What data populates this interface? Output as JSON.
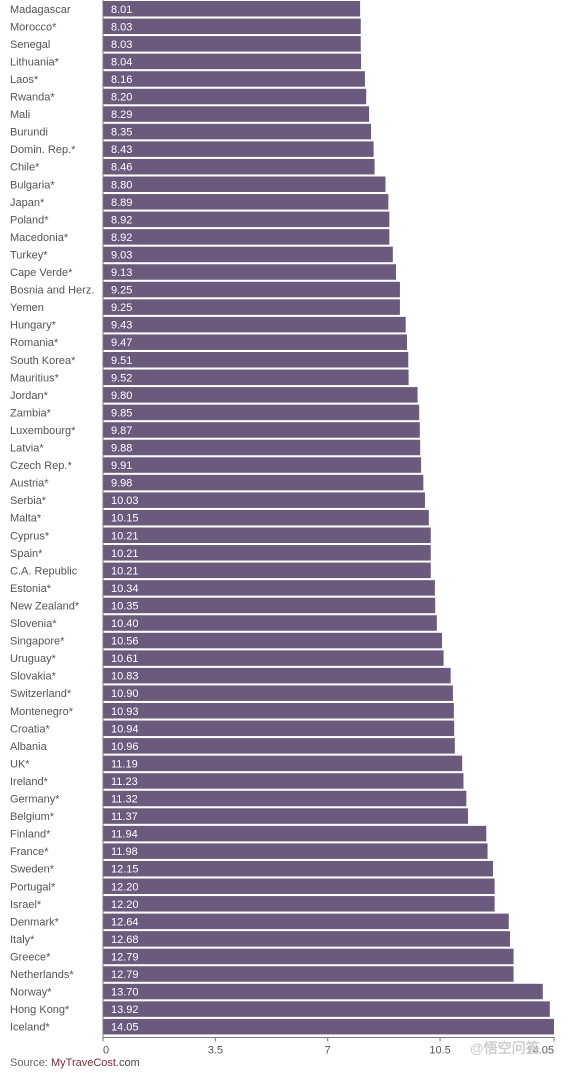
{
  "chart_data": {
    "type": "bar",
    "orientation": "horizontal",
    "categories": [
      "Madagascar",
      "Morocco*",
      "Senegal",
      "Lithuania*",
      "Laos*",
      "Rwanda*",
      "Mali",
      "Burundi",
      "Domin. Rep.*",
      "Chile*",
      "Bulgaria*",
      "Japan*",
      "Poland*",
      "Macedonia*",
      "Turkey*",
      "Cape Verde*",
      "Bosnia and Herz.",
      "Yemen",
      "Hungary*",
      "Romania*",
      "South Korea*",
      "Mauritius*",
      "Jordan*",
      "Zambia*",
      "Luxembourg*",
      "Latvia*",
      "Czech Rep.*",
      "Austria*",
      "Serbia*",
      "Malta*",
      "Cyprus*",
      "Spain*",
      "C.A. Republic",
      "Estonia*",
      "New Zealand*",
      "Slovenia*",
      "Singapore*",
      "Uruguay*",
      "Slovakia*",
      "Switzerland*",
      "Montenegro*",
      "Croatia*",
      "Albania",
      "UK*",
      "Ireland*",
      "Germany*",
      "Belgium*",
      "Finland*",
      "France*",
      "Sweden*",
      "Portugal*",
      "Israel*",
      "Denmark*",
      "Italy*",
      "Greece*",
      "Netherlands*",
      "Norway*",
      "Hong Kong*",
      "Iceland*"
    ],
    "values": [
      8.01,
      8.03,
      8.03,
      8.04,
      8.16,
      8.2,
      8.29,
      8.35,
      8.43,
      8.46,
      8.8,
      8.89,
      8.92,
      8.92,
      9.03,
      9.13,
      9.25,
      9.25,
      9.43,
      9.47,
      9.51,
      9.52,
      9.8,
      9.85,
      9.87,
      9.88,
      9.91,
      9.98,
      10.03,
      10.15,
      10.21,
      10.21,
      10.21,
      10.34,
      10.35,
      10.4,
      10.56,
      10.61,
      10.83,
      10.9,
      10.93,
      10.94,
      10.96,
      11.19,
      11.23,
      11.32,
      11.37,
      11.94,
      11.98,
      12.15,
      12.2,
      12.2,
      12.64,
      12.68,
      12.79,
      12.79,
      13.7,
      13.92,
      14.05
    ],
    "value_labels": [
      "8.01",
      "8.03",
      "8.03",
      "8.04",
      "8.16",
      "8.20",
      "8.29",
      "8.35",
      "8.43",
      "8.46",
      "8.80",
      "8.89",
      "8.92",
      "8.92",
      "9.03",
      "9.13",
      "9.25",
      "9.25",
      "9.43",
      "9.47",
      "9.51",
      "9.52",
      "9.80",
      "9.85",
      "9.87",
      "9.88",
      "9.91",
      "9.98",
      "10.03",
      "10.15",
      "10.21",
      "10.21",
      "10.21",
      "10.34",
      "10.35",
      "10.40",
      "10.56",
      "10.61",
      "10.83",
      "10.90",
      "10.93",
      "10.94",
      "10.96",
      "11.19",
      "11.23",
      "11.32",
      "11.37",
      "11.94",
      "11.98",
      "12.15",
      "12.20",
      "12.20",
      "12.64",
      "12.68",
      "12.79",
      "12.79",
      "13.70",
      "13.92",
      "14.05"
    ],
    "xlim": [
      0,
      14.05
    ],
    "xticks": [
      0,
      3.5,
      7,
      10.5,
      14.05
    ],
    "xtick_labels": [
      "0",
      "3.5",
      "7",
      "10.5",
      "14.05"
    ],
    "grid": false,
    "bar_color": "#6b5a7e",
    "label_color": "#ffffff"
  },
  "source": {
    "prefix": "Source: ",
    "brand_a": "MyTrave",
    "brand_b": "Cost",
    "suffix": ".com"
  },
  "watermark": "@悟空问答"
}
